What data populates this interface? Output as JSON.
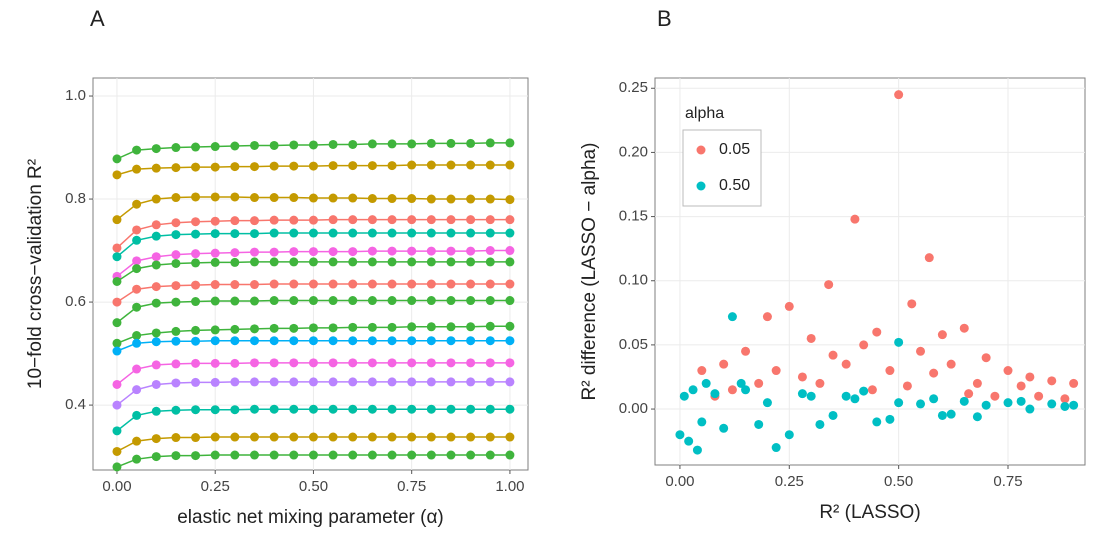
{
  "chart_data": [
    {
      "type": "line",
      "title": "A",
      "x_label": "elastic net mixing parameter (α)",
      "y_label": "10−fold cross−validation R²",
      "x": [
        0,
        0.05,
        0.1,
        0.15,
        0.2,
        0.25,
        0.3,
        0.35,
        0.4,
        0.45,
        0.5,
        0.55,
        0.6,
        0.65,
        0.7,
        0.75,
        0.8,
        0.85,
        0.9,
        0.95,
        1.0
      ],
      "xlim": [
        -0.061,
        1.046
      ],
      "ylim": [
        0.274,
        1.035
      ],
      "xticks": [
        {
          "value": 0,
          "label": "0.00"
        },
        0.25,
        {
          "value": 0.5,
          "label": "0.50"
        },
        0.75,
        {
          "value": 1,
          "label": "1.00"
        }
      ],
      "yticks": [
        0.4,
        0.6,
        0.8,
        {
          "value": 1,
          "label": "1.0"
        }
      ],
      "grid": true,
      "series": [
        {
          "color": "#3fb43c",
          "values": [
            0.878,
            0.895,
            0.898,
            0.9,
            0.901,
            0.902,
            0.903,
            0.904,
            0.904,
            0.905,
            0.905,
            0.906,
            0.906,
            0.907,
            0.907,
            0.907,
            0.908,
            0.908,
            0.908,
            0.909,
            0.909
          ]
        },
        {
          "color": "#c49a00",
          "values": [
            0.847,
            0.858,
            0.86,
            0.861,
            0.862,
            0.862,
            0.863,
            0.863,
            0.864,
            0.864,
            0.864,
            0.865,
            0.865,
            0.865,
            0.865,
            0.866,
            0.866,
            0.866,
            0.866,
            0.866,
            0.866
          ]
        },
        {
          "color": "#c49a00",
          "values": [
            0.76,
            0.79,
            0.8,
            0.803,
            0.804,
            0.804,
            0.804,
            0.803,
            0.803,
            0.803,
            0.802,
            0.802,
            0.802,
            0.801,
            0.801,
            0.801,
            0.8,
            0.8,
            0.8,
            0.8,
            0.799
          ]
        },
        {
          "color": "#f8766d",
          "values": [
            0.705,
            0.74,
            0.75,
            0.754,
            0.756,
            0.757,
            0.758,
            0.758,
            0.759,
            0.759,
            0.759,
            0.76,
            0.76,
            0.76,
            0.76,
            0.76,
            0.76,
            0.76,
            0.76,
            0.76,
            0.76
          ]
        },
        {
          "color": "#00bfa4",
          "values": [
            0.688,
            0.72,
            0.728,
            0.731,
            0.732,
            0.733,
            0.733,
            0.733,
            0.734,
            0.734,
            0.734,
            0.734,
            0.734,
            0.734,
            0.734,
            0.734,
            0.734,
            0.734,
            0.734,
            0.734,
            0.734
          ]
        },
        {
          "color": "#f564e3",
          "values": [
            0.65,
            0.68,
            0.688,
            0.692,
            0.694,
            0.695,
            0.696,
            0.697,
            0.697,
            0.698,
            0.698,
            0.698,
            0.698,
            0.699,
            0.699,
            0.699,
            0.699,
            0.699,
            0.699,
            0.7,
            0.7
          ]
        },
        {
          "color": "#3fb43c",
          "values": [
            0.64,
            0.665,
            0.672,
            0.675,
            0.676,
            0.677,
            0.677,
            0.678,
            0.678,
            0.678,
            0.678,
            0.678,
            0.678,
            0.678,
            0.678,
            0.678,
            0.678,
            0.678,
            0.678,
            0.678,
            0.678
          ]
        },
        {
          "color": "#f8766d",
          "values": [
            0.6,
            0.625,
            0.63,
            0.632,
            0.633,
            0.634,
            0.634,
            0.634,
            0.635,
            0.635,
            0.635,
            0.635,
            0.635,
            0.635,
            0.635,
            0.635,
            0.635,
            0.635,
            0.635,
            0.635,
            0.635
          ]
        },
        {
          "color": "#3fb43c",
          "values": [
            0.56,
            0.59,
            0.598,
            0.6,
            0.601,
            0.602,
            0.602,
            0.602,
            0.603,
            0.603,
            0.603,
            0.603,
            0.603,
            0.603,
            0.603,
            0.603,
            0.603,
            0.603,
            0.603,
            0.603,
            0.603
          ]
        },
        {
          "color": "#3fb43c",
          "values": [
            0.52,
            0.535,
            0.54,
            0.543,
            0.545,
            0.546,
            0.547,
            0.548,
            0.549,
            0.549,
            0.55,
            0.55,
            0.551,
            0.551,
            0.551,
            0.552,
            0.552,
            0.552,
            0.552,
            0.553,
            0.553
          ]
        },
        {
          "color": "#00b0f6",
          "values": [
            0.505,
            0.52,
            0.523,
            0.524,
            0.524,
            0.525,
            0.525,
            0.525,
            0.525,
            0.525,
            0.525,
            0.525,
            0.525,
            0.525,
            0.525,
            0.525,
            0.525,
            0.525,
            0.525,
            0.525,
            0.525
          ]
        },
        {
          "color": "#f564e3",
          "values": [
            0.44,
            0.47,
            0.478,
            0.48,
            0.481,
            0.481,
            0.481,
            0.482,
            0.482,
            0.482,
            0.482,
            0.482,
            0.482,
            0.482,
            0.482,
            0.482,
            0.482,
            0.482,
            0.482,
            0.482,
            0.482
          ]
        },
        {
          "color": "#b983ff",
          "values": [
            0.4,
            0.43,
            0.44,
            0.443,
            0.444,
            0.444,
            0.445,
            0.445,
            0.445,
            0.445,
            0.445,
            0.445,
            0.445,
            0.445,
            0.445,
            0.445,
            0.445,
            0.445,
            0.445,
            0.445,
            0.445
          ]
        },
        {
          "color": "#00bfa4",
          "values": [
            0.35,
            0.38,
            0.388,
            0.39,
            0.391,
            0.391,
            0.391,
            0.392,
            0.392,
            0.392,
            0.392,
            0.392,
            0.392,
            0.392,
            0.392,
            0.392,
            0.392,
            0.392,
            0.392,
            0.392,
            0.392
          ]
        },
        {
          "color": "#c49a00",
          "values": [
            0.31,
            0.33,
            0.335,
            0.337,
            0.337,
            0.338,
            0.338,
            0.338,
            0.338,
            0.338,
            0.338,
            0.338,
            0.338,
            0.338,
            0.338,
            0.338,
            0.338,
            0.338,
            0.338,
            0.338,
            0.338
          ]
        },
        {
          "color": "#3fb43c",
          "values": [
            0.28,
            0.295,
            0.3,
            0.302,
            0.302,
            0.303,
            0.303,
            0.303,
            0.303,
            0.303,
            0.303,
            0.303,
            0.303,
            0.303,
            0.303,
            0.303,
            0.303,
            0.303,
            0.303,
            0.303,
            0.303
          ]
        }
      ]
    },
    {
      "type": "scatter",
      "title": "B",
      "x_label": "R² (LASSO)",
      "y_label": "R² difference (LASSO − alpha)",
      "xlim": [
        -0.057,
        0.926
      ],
      "ylim": [
        -0.0436,
        0.258
      ],
      "xticks": [
        {
          "value": 0,
          "label": "0.00"
        },
        0.25,
        {
          "value": 0.5,
          "label": "0.50"
        },
        0.75
      ],
      "yticks": [
        {
          "value": 0,
          "label": "0.00"
        },
        0.05,
        {
          "value": 0.1,
          "label": "0.10"
        },
        0.15,
        {
          "value": 0.2,
          "label": "0.20"
        },
        0.25
      ],
      "grid": true,
      "legend_title": "alpha",
      "legend": "top-left",
      "series": [
        {
          "name": "0.05",
          "color": "#f8766d",
          "x": [
            0.5,
            0.4,
            0.57,
            0.34,
            0.53,
            0.25,
            0.2,
            0.65,
            0.45,
            0.3,
            0.6,
            0.7,
            0.1,
            0.15,
            0.05,
            0.35,
            0.42,
            0.55,
            0.62,
            0.75,
            0.8,
            0.85,
            0.9,
            0.22,
            0.28,
            0.38,
            0.48,
            0.58,
            0.68,
            0.78,
            0.12,
            0.18,
            0.32,
            0.44,
            0.52,
            0.66,
            0.72,
            0.82,
            0.88,
            0.08
          ],
          "y": [
            0.245,
            0.148,
            0.118,
            0.097,
            0.082,
            0.08,
            0.072,
            0.063,
            0.06,
            0.055,
            0.058,
            0.04,
            0.035,
            0.045,
            0.03,
            0.042,
            0.05,
            0.045,
            0.035,
            0.03,
            0.025,
            0.022,
            0.02,
            0.03,
            0.025,
            0.035,
            0.03,
            0.028,
            0.02,
            0.018,
            0.015,
            0.02,
            0.02,
            0.015,
            0.018,
            0.012,
            0.01,
            0.01,
            0.008,
            0.01
          ]
        },
        {
          "name": "0.50",
          "color": "#00bfc4",
          "x": [
            0.12,
            0.5,
            0.0,
            0.01,
            0.02,
            0.03,
            0.05,
            0.08,
            0.1,
            0.15,
            0.2,
            0.25,
            0.3,
            0.35,
            0.4,
            0.45,
            0.5,
            0.55,
            0.6,
            0.65,
            0.7,
            0.75,
            0.8,
            0.85,
            0.9,
            0.22,
            0.04,
            0.06,
            0.18,
            0.28,
            0.38,
            0.48,
            0.58,
            0.68,
            0.78,
            0.88,
            0.14,
            0.32,
            0.42,
            0.62
          ],
          "y": [
            0.072,
            0.052,
            -0.02,
            0.01,
            -0.025,
            0.015,
            -0.01,
            0.012,
            -0.015,
            0.015,
            0.005,
            -0.02,
            0.01,
            -0.005,
            0.008,
            -0.01,
            0.005,
            0.004,
            -0.005,
            0.006,
            0.003,
            0.005,
            0.0,
            0.004,
            0.003,
            -0.03,
            -0.032,
            0.02,
            -0.012,
            0.012,
            0.01,
            -0.008,
            0.008,
            -0.006,
            0.006,
            0.002,
            0.02,
            -0.012,
            0.014,
            -0.004
          ]
        }
      ]
    }
  ]
}
